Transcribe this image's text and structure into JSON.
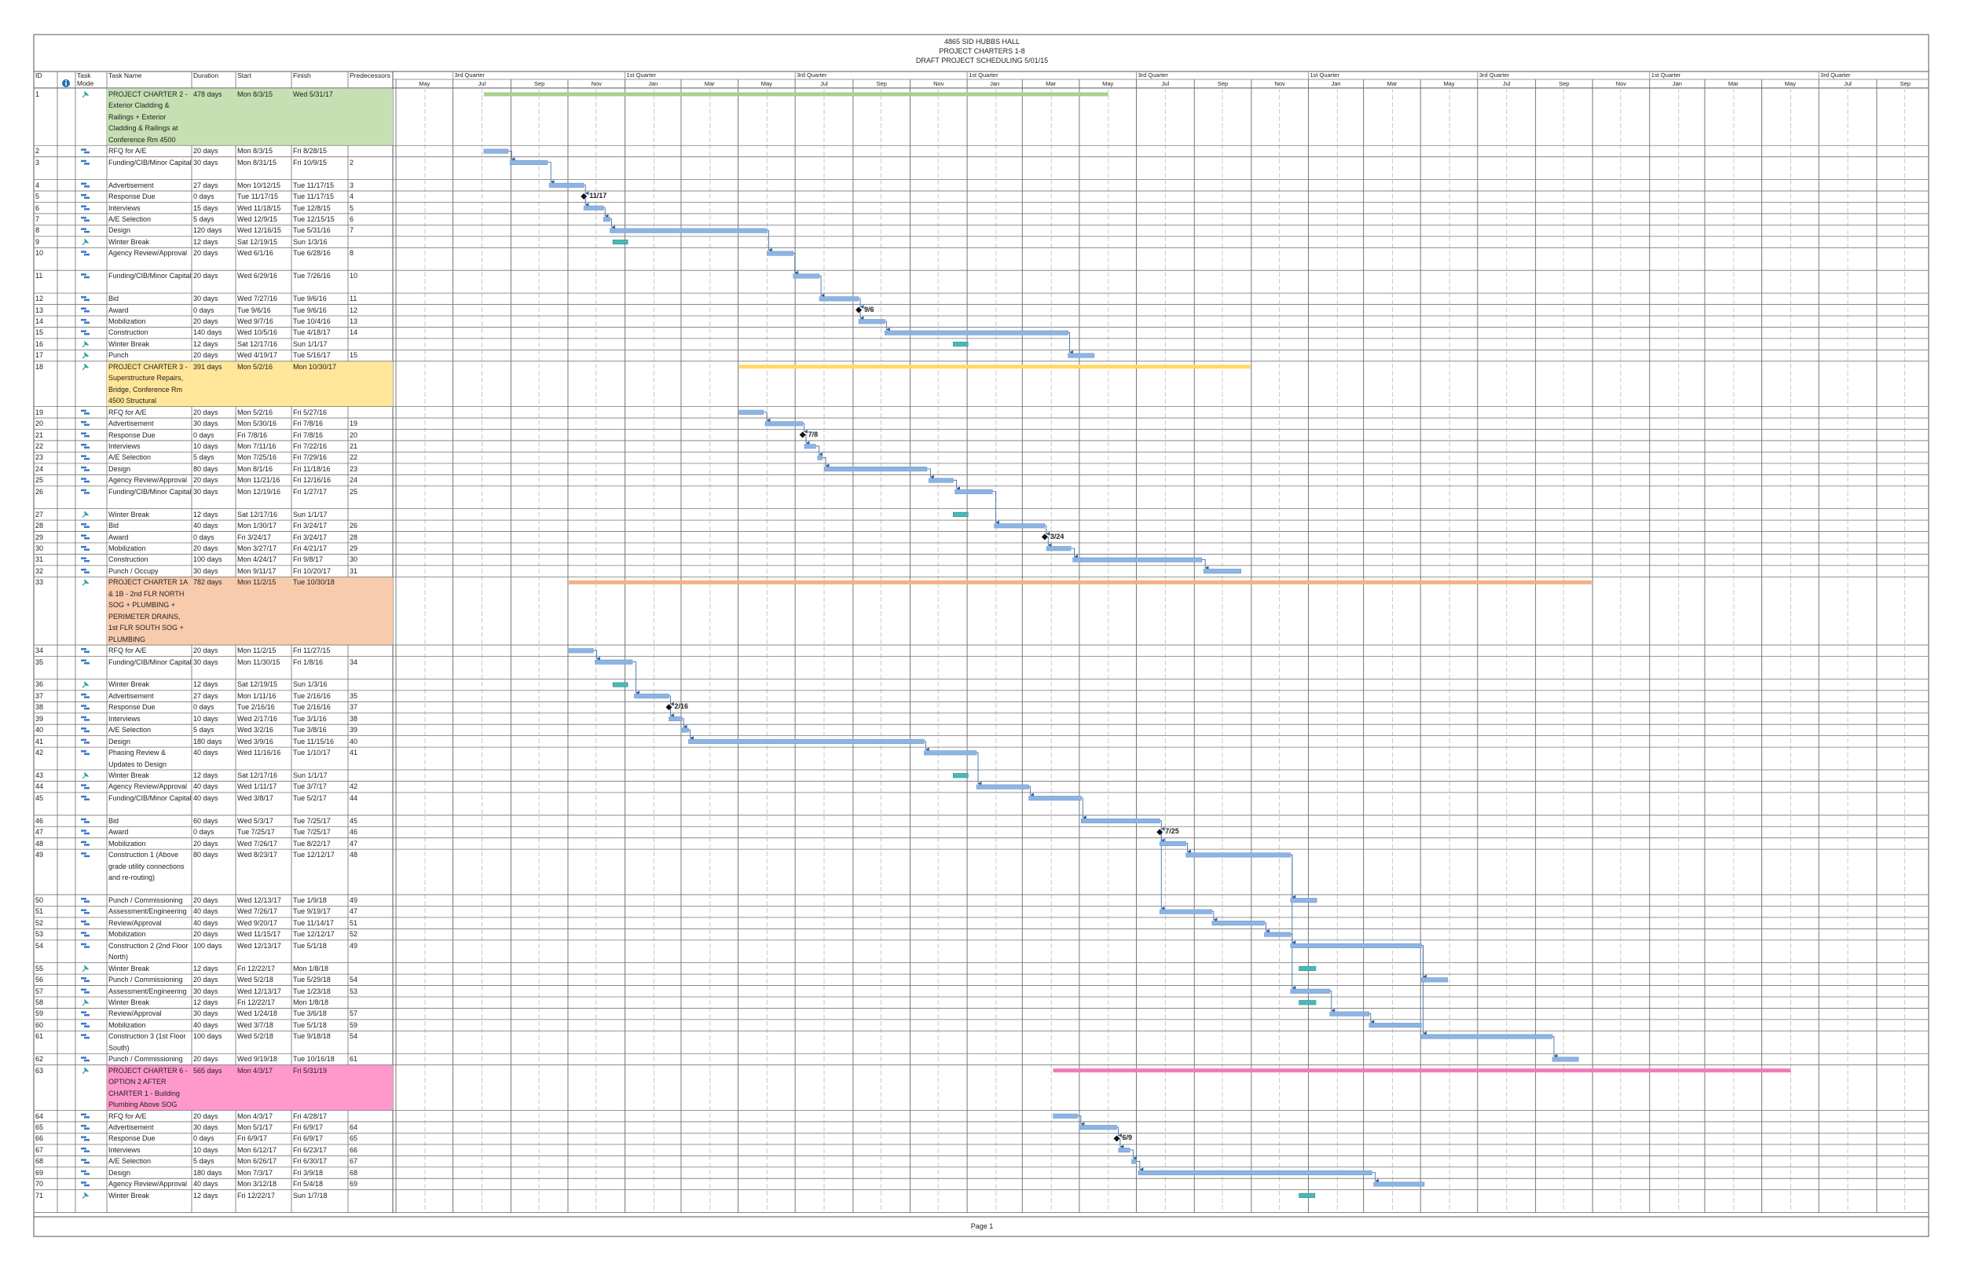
{
  "header": {
    "lines": [
      "4865 SID HUBBS HALL",
      "PROJECT CHARTERS 1-8",
      "DRAFT PROJECT SCHEDULING 5/01/15"
    ]
  },
  "columns": {
    "id": "ID",
    "mode": "Task Mode",
    "name": "Task Name",
    "duration": "Duration",
    "start": "Start",
    "finish": "Finish",
    "pred": "Predecessors"
  },
  "timescale": {
    "quarters": [
      "3rd Quarter",
      "1st Quarter",
      "3rd Quarter",
      "1st Quarter",
      "3rd Quarter",
      "1st Quarter",
      "3rd Quarter",
      "1st Quarter",
      "3rd Quarter"
    ],
    "months": [
      "May",
      "Jul",
      "Sep",
      "Nov",
      "Jan",
      "Mar",
      "May",
      "Jul",
      "Sep",
      "Nov",
      "Jan",
      "Mar",
      "May",
      "Jul",
      "Sep",
      "Nov",
      "Jan",
      "Mar",
      "May",
      "Jul",
      "Sep",
      "Nov",
      "Jan",
      "Mar",
      "May",
      "Jul",
      "Sep"
    ]
  },
  "rows": [
    {
      "id": 1,
      "name": "PROJECT CHARTER 2 - Exterior Cladding & Railings + Exterior Cladding & Railings at Conference Rm 4500",
      "duration": "478 days",
      "start": "Mon 8/3/15",
      "finish": "Wed 5/31/17",
      "manual": true,
      "color": "#c6e0b4",
      "bar_color": "#a9d08e"
    },
    {
      "id": 2,
      "name": "RFQ for A/E",
      "duration": "20 days",
      "start": "Mon 8/3/15",
      "finish": "Fri 8/28/15"
    },
    {
      "id": 3,
      "name": "Funding/CIB/Minor Capital",
      "duration": "30 days",
      "start": "Mon 8/31/15",
      "finish": "Fri 10/9/15",
      "pred": 2
    },
    {
      "id": 4,
      "name": "Advertisement",
      "duration": "27 days",
      "start": "Mon 10/12/15",
      "finish": "Tue 11/17/15",
      "pred": 3
    },
    {
      "id": 5,
      "name": "Response Due",
      "duration": "0 days",
      "start": "Tue 11/17/15",
      "finish": "Tue 11/17/15",
      "pred": 4,
      "milestone_label": "11/17"
    },
    {
      "id": 6,
      "name": "Interviews",
      "duration": "15 days",
      "start": "Wed 11/18/15",
      "finish": "Tue 12/8/15",
      "pred": 5
    },
    {
      "id": 7,
      "name": "A/E Selection",
      "duration": "5 days",
      "start": "Wed 12/9/15",
      "finish": "Tue 12/15/15",
      "pred": 6
    },
    {
      "id": 8,
      "name": "Design",
      "duration": "120 days",
      "start": "Wed 12/16/15",
      "finish": "Tue 5/31/16",
      "pred": 7
    },
    {
      "id": 9,
      "name": "Winter Break",
      "duration": "12 days",
      "start": "Sat 12/19/15",
      "finish": "Sun 1/3/16",
      "manual": true,
      "bar_color": "#4bb8b8"
    },
    {
      "id": 10,
      "name": "Agency Review/Approval",
      "duration": "20 days",
      "start": "Wed 6/1/16",
      "finish": "Tue 6/28/16",
      "pred": 8
    },
    {
      "id": 11,
      "name": "Funding/CIB/Minor Capital",
      "duration": "20 days",
      "start": "Wed 6/29/16",
      "finish": "Tue 7/26/16",
      "pred": 10
    },
    {
      "id": 12,
      "name": "Bid",
      "duration": "30 days",
      "start": "Wed 7/27/16",
      "finish": "Tue 9/6/16",
      "pred": 11
    },
    {
      "id": 13,
      "name": "Award",
      "duration": "0 days",
      "start": "Tue 9/6/16",
      "finish": "Tue 9/6/16",
      "pred": 12,
      "milestone_label": "9/6"
    },
    {
      "id": 14,
      "name": "Mobilization",
      "duration": "20 days",
      "start": "Wed 9/7/16",
      "finish": "Tue 10/4/16",
      "pred": 13
    },
    {
      "id": 15,
      "name": "Construction",
      "duration": "140 days",
      "start": "Wed 10/5/16",
      "finish": "Tue 4/18/17",
      "pred": 14
    },
    {
      "id": 16,
      "name": "Winter Break",
      "duration": "12 days",
      "start": "Sat 12/17/16",
      "finish": "Sun 1/1/17",
      "manual": true,
      "bar_color": "#4bb8b8"
    },
    {
      "id": 17,
      "name": "Punch",
      "duration": "20 days",
      "start": "Wed 4/19/17",
      "finish": "Tue 5/16/17",
      "pred": 15,
      "manual": true
    },
    {
      "id": 18,
      "name": "PROJECT CHARTER 3 - Superstructure Repairs, Bridge, Conference Rm 4500 Structural",
      "duration": "391 days",
      "start": "Mon 5/2/16",
      "finish": "Mon 10/30/17",
      "manual": true,
      "color": "#ffe699",
      "bar_color": "#ffd966"
    },
    {
      "id": 19,
      "name": "RFQ for A/E",
      "duration": "20 days",
      "start": "Mon 5/2/16",
      "finish": "Fri 5/27/16"
    },
    {
      "id": 20,
      "name": "Advertisement",
      "duration": "30 days",
      "start": "Mon 5/30/16",
      "finish": "Fri 7/8/16",
      "pred": 19
    },
    {
      "id": 21,
      "name": "Response Due",
      "duration": "0 days",
      "start": "Fri 7/8/16",
      "finish": "Fri 7/8/16",
      "pred": 20,
      "milestone_label": "7/8"
    },
    {
      "id": 22,
      "name": "Interviews",
      "duration": "10 days",
      "start": "Mon 7/11/16",
      "finish": "Fri 7/22/16",
      "pred": 21
    },
    {
      "id": 23,
      "name": "A/E Selection",
      "duration": "5 days",
      "start": "Mon 7/25/16",
      "finish": "Fri 7/29/16",
      "pred": 22
    },
    {
      "id": 24,
      "name": "Design",
      "duration": "80 days",
      "start": "Mon 8/1/16",
      "finish": "Fri 11/18/16",
      "pred": 23
    },
    {
      "id": 25,
      "name": "Agency Review/Approval",
      "duration": "20 days",
      "start": "Mon 11/21/16",
      "finish": "Fri 12/16/16",
      "pred": 24
    },
    {
      "id": 26,
      "name": "Funding/CIB/Minor Capital",
      "duration": "30 days",
      "start": "Mon 12/19/16",
      "finish": "Fri 1/27/17",
      "pred": 25
    },
    {
      "id": 27,
      "name": "Winter Break",
      "duration": "12 days",
      "start": "Sat 12/17/16",
      "finish": "Sun 1/1/17",
      "manual": true,
      "bar_color": "#4bb8b8"
    },
    {
      "id": 28,
      "name": "Bid",
      "duration": "40 days",
      "start": "Mon 1/30/17",
      "finish": "Fri 3/24/17",
      "pred": 26
    },
    {
      "id": 29,
      "name": "Award",
      "duration": "0 days",
      "start": "Fri 3/24/17",
      "finish": "Fri 3/24/17",
      "pred": 28,
      "milestone_label": "3/24"
    },
    {
      "id": 30,
      "name": "Mobilization",
      "duration": "20 days",
      "start": "Mon 3/27/17",
      "finish": "Fri 4/21/17",
      "pred": 29
    },
    {
      "id": 31,
      "name": "Construction",
      "duration": "100 days",
      "start": "Mon 4/24/17",
      "finish": "Fri 9/8/17",
      "pred": 30
    },
    {
      "id": 32,
      "name": "Punch / Occupy",
      "duration": "30 days",
      "start": "Mon 9/11/17",
      "finish": "Fri 10/20/17",
      "pred": 31
    },
    {
      "id": 33,
      "name": "PROJECT CHARTER 1A & 1B - 2nd FLR NORTH SOG + PLUMBING + PERIMETER DRAINS, 1st FLR SOUTH SOG + PLUMBING",
      "duration": "782 days",
      "start": "Mon 11/2/15",
      "finish": "Tue 10/30/18",
      "manual": true,
      "color": "#f8cbad",
      "bar_color": "#f4b183"
    },
    {
      "id": 34,
      "name": "RFQ for A/E",
      "duration": "20 days",
      "start": "Mon 11/2/15",
      "finish": "Fri 11/27/15"
    },
    {
      "id": 35,
      "name": "Funding/CIB/Minor Capital",
      "duration": "30 days",
      "start": "Mon 11/30/15",
      "finish": "Fri 1/8/16",
      "pred": 34
    },
    {
      "id": 36,
      "name": "Winter Break",
      "duration": "12 days",
      "start": "Sat 12/19/15",
      "finish": "Sun 1/3/16",
      "manual": true,
      "bar_color": "#4bb8b8"
    },
    {
      "id": 37,
      "name": "Advertisement",
      "duration": "27 days",
      "start": "Mon 1/11/16",
      "finish": "Tue 2/16/16",
      "pred": 35
    },
    {
      "id": 38,
      "name": "Response Due",
      "duration": "0 days",
      "start": "Tue 2/16/16",
      "finish": "Tue 2/16/16",
      "pred": 37,
      "milestone_label": "2/16"
    },
    {
      "id": 39,
      "name": "Interviews",
      "duration": "10 days",
      "start": "Wed 2/17/16",
      "finish": "Tue 3/1/16",
      "pred": 38
    },
    {
      "id": 40,
      "name": "A/E Selection",
      "duration": "5 days",
      "start": "Wed 3/2/16",
      "finish": "Tue 3/8/16",
      "pred": 39
    },
    {
      "id": 41,
      "name": "Design",
      "duration": "180 days",
      "start": "Wed 3/9/16",
      "finish": "Tue 11/15/16",
      "pred": 40
    },
    {
      "id": 42,
      "name": "Phasing Review & Updates to Design",
      "duration": "40 days",
      "start": "Wed 11/16/16",
      "finish": "Tue 1/10/17",
      "pred": 41
    },
    {
      "id": 43,
      "name": "Winter Break",
      "duration": "12 days",
      "start": "Sat 12/17/16",
      "finish": "Sun 1/1/17",
      "manual": true,
      "bar_color": "#4bb8b8"
    },
    {
      "id": 44,
      "name": "Agency Review/Approval",
      "duration": "40 days",
      "start": "Wed 1/11/17",
      "finish": "Tue 3/7/17",
      "pred": 42
    },
    {
      "id": 45,
      "name": "Funding/CIB/Minor Capital",
      "duration": "40 days",
      "start": "Wed 3/8/17",
      "finish": "Tue 5/2/17",
      "pred": 44
    },
    {
      "id": 46,
      "name": "Bid",
      "duration": "60 days",
      "start": "Wed 5/3/17",
      "finish": "Tue 7/25/17",
      "pred": 45
    },
    {
      "id": 47,
      "name": "Award",
      "duration": "0 days",
      "start": "Tue 7/25/17",
      "finish": "Tue 7/25/17",
      "pred": 46,
      "milestone_label": "7/25"
    },
    {
      "id": 48,
      "name": "Mobilization",
      "duration": "20 days",
      "start": "Wed 7/26/17",
      "finish": "Tue 8/22/17",
      "pred": 47
    },
    {
      "id": 49,
      "name": "Construction 1 (Above grade utility connections and re-routing)",
      "duration": "80 days",
      "start": "Wed 8/23/17",
      "finish": "Tue 12/12/17",
      "pred": 48
    },
    {
      "id": 50,
      "name": "Punch / Commissioning",
      "duration": "20 days",
      "start": "Wed 12/13/17",
      "finish": "Tue 1/9/18",
      "pred": 49
    },
    {
      "id": 51,
      "name": "Assessment/Engineering",
      "duration": "40 days",
      "start": "Wed 7/26/17",
      "finish": "Tue 9/19/17",
      "pred": 47
    },
    {
      "id": 52,
      "name": "Review/Approval",
      "duration": "40 days",
      "start": "Wed 9/20/17",
      "finish": "Tue 11/14/17",
      "pred": 51
    },
    {
      "id": 53,
      "name": "Mobilization",
      "duration": "20 days",
      "start": "Wed 11/15/17",
      "finish": "Tue 12/12/17",
      "pred": 52
    },
    {
      "id": 54,
      "name": "Construction 2 (2nd Floor North)",
      "duration": "100 days",
      "start": "Wed 12/13/17",
      "finish": "Tue 5/1/18",
      "pred": 49
    },
    {
      "id": 55,
      "name": "Winter Break",
      "duration": "12 days",
      "start": "Fri 12/22/17",
      "finish": "Mon 1/8/18",
      "manual": true,
      "bar_color": "#4bb8b8"
    },
    {
      "id": 56,
      "name": "Punch / Commissioning",
      "duration": "20 days",
      "start": "Wed 5/2/18",
      "finish": "Tue 5/29/18",
      "pred": 54
    },
    {
      "id": 57,
      "name": "Assessment/Engineering",
      "duration": "30 days",
      "start": "Wed 12/13/17",
      "finish": "Tue 1/23/18",
      "pred": 53
    },
    {
      "id": 58,
      "name": "Winter Break",
      "duration": "12 days",
      "start": "Fri 12/22/17",
      "finish": "Mon 1/8/18",
      "manual": true,
      "bar_color": "#4bb8b8"
    },
    {
      "id": 59,
      "name": "Review/Approval",
      "duration": "30 days",
      "start": "Wed 1/24/18",
      "finish": "Tue 3/6/18",
      "pred": 57
    },
    {
      "id": 60,
      "name": "Mobilization",
      "duration": "40 days",
      "start": "Wed 3/7/18",
      "finish": "Tue 5/1/18",
      "pred": 59
    },
    {
      "id": 61,
      "name": "Construction 3 (1st Floor South)",
      "duration": "100 days",
      "start": "Wed 5/2/18",
      "finish": "Tue 9/18/18",
      "pred": 54
    },
    {
      "id": 62,
      "name": "Punch / Commissioning",
      "duration": "20 days",
      "start": "Wed 9/19/18",
      "finish": "Tue 10/16/18",
      "pred": 61
    },
    {
      "id": 63,
      "name": "PROJECT CHARTER 6 - OPTION 2 AFTER CHARTER 1 - Building Plumbing Above SOG",
      "duration": "565 days",
      "start": "Mon 4/3/17",
      "finish": "Fri 5/31/19",
      "manual": true,
      "color": "#ff99cc",
      "bar_color": "#f07ab8"
    },
    {
      "id": 64,
      "name": "RFQ for A/E",
      "duration": "20 days",
      "start": "Mon 4/3/17",
      "finish": "Fri 4/28/17"
    },
    {
      "id": 65,
      "name": "Advertisement",
      "duration": "30 days",
      "start": "Mon 5/1/17",
      "finish": "Fri 6/9/17",
      "pred": 64
    },
    {
      "id": 66,
      "name": "Response Due",
      "duration": "0 days",
      "start": "Fri 6/9/17",
      "finish": "Fri 6/9/17",
      "pred": 65,
      "milestone_label": "6/9"
    },
    {
      "id": 67,
      "name": "Interviews",
      "duration": "10 days",
      "start": "Mon 6/12/17",
      "finish": "Fri 6/23/17",
      "pred": 66
    },
    {
      "id": 68,
      "name": "A/E Selection",
      "duration": "5 days",
      "start": "Mon 6/26/17",
      "finish": "Fri 6/30/17",
      "pred": 67
    },
    {
      "id": 69,
      "name": "Design",
      "duration": "180 days",
      "start": "Mon 7/3/17",
      "finish": "Fri 3/9/18",
      "pred": 68
    },
    {
      "id": 70,
      "name": "Agency Review/Approval",
      "duration": "40 days",
      "start": "Mon 3/12/18",
      "finish": "Fri 5/4/18",
      "pred": 69
    },
    {
      "id": 71,
      "name": "Winter Break",
      "duration": "12 days",
      "start": "Fri 12/22/17",
      "finish": "Sun 1/7/18",
      "manual": true,
      "bar_color": "#4bb8b8"
    }
  ],
  "footer": "Page 1"
}
